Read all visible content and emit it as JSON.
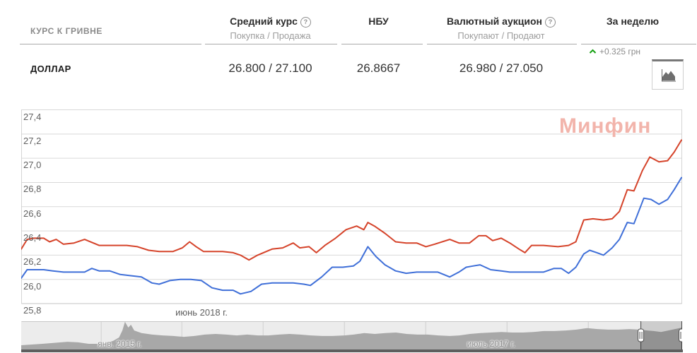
{
  "header": {
    "row_label": "КУРС К ГРИВНЕ",
    "avg": {
      "title": "Средний курс",
      "help": "?",
      "subtitle": "Покупка / Продажа"
    },
    "nbu": {
      "title": "НБУ"
    },
    "auction": {
      "title": "Валютный аукцион",
      "help": "?",
      "subtitle": "Покупают / Продают"
    },
    "week": {
      "title": "За неделю"
    }
  },
  "row": {
    "currency": "ДОЛЛАР",
    "avg_value": "26.800 / 27.100",
    "nbu_value": "26.8667",
    "auction_value": "26.980 / 27.050",
    "week_change": "+0.325 грн",
    "week_direction": "up"
  },
  "watermark": "Минфин",
  "colors": {
    "sell_line": "#d5432a",
    "buy_line": "#3f6fd8",
    "up_green": "#15a012",
    "watermark_pink": "#f2b4ab",
    "navigator_fill": "#a8a8a8"
  },
  "chart_data": {
    "type": "line",
    "title": "",
    "xlabel": "",
    "ylabel": "",
    "ylim": [
      25.8,
      27.4
    ],
    "grid": true,
    "legend": "none",
    "xtick_label": "июнь 2018 г.",
    "yticks": [
      {
        "label": "27,4",
        "value": 27.4
      },
      {
        "label": "27,2",
        "value": 27.2
      },
      {
        "label": "27,0",
        "value": 27.0
      },
      {
        "label": "26,8",
        "value": 26.8
      },
      {
        "label": "26,6",
        "value": 26.6
      },
      {
        "label": "26,4",
        "value": 26.4
      },
      {
        "label": "26,2",
        "value": 26.2
      },
      {
        "label": "26,0",
        "value": 26.0
      },
      {
        "label": "25,8",
        "value": 25.8
      }
    ],
    "series": [
      {
        "name": "продажа",
        "color": "#d5432a",
        "points": [
          [
            0,
            26.25
          ],
          [
            0.009,
            26.33
          ],
          [
            0.019,
            26.34
          ],
          [
            0.034,
            26.34
          ],
          [
            0.043,
            26.31
          ],
          [
            0.053,
            26.33
          ],
          [
            0.064,
            26.29
          ],
          [
            0.08,
            26.3
          ],
          [
            0.096,
            26.33
          ],
          [
            0.118,
            26.28
          ],
          [
            0.139,
            26.28
          ],
          [
            0.16,
            26.28
          ],
          [
            0.176,
            26.27
          ],
          [
            0.193,
            26.24
          ],
          [
            0.209,
            26.23
          ],
          [
            0.23,
            26.23
          ],
          [
            0.244,
            26.26
          ],
          [
            0.255,
            26.31
          ],
          [
            0.265,
            26.27
          ],
          [
            0.276,
            26.23
          ],
          [
            0.289,
            26.23
          ],
          [
            0.305,
            26.23
          ],
          [
            0.321,
            26.22
          ],
          [
            0.332,
            26.2
          ],
          [
            0.345,
            26.16
          ],
          [
            0.358,
            26.2
          ],
          [
            0.38,
            26.25
          ],
          [
            0.396,
            26.26
          ],
          [
            0.412,
            26.3
          ],
          [
            0.422,
            26.26
          ],
          [
            0.436,
            26.27
          ],
          [
            0.447,
            26.22
          ],
          [
            0.46,
            26.28
          ],
          [
            0.476,
            26.34
          ],
          [
            0.492,
            26.41
          ],
          [
            0.508,
            26.44
          ],
          [
            0.519,
            26.41
          ],
          [
            0.525,
            26.47
          ],
          [
            0.535,
            26.44
          ],
          [
            0.551,
            26.38
          ],
          [
            0.567,
            26.31
          ],
          [
            0.583,
            26.3
          ],
          [
            0.599,
            26.3
          ],
          [
            0.613,
            26.27
          ],
          [
            0.626,
            26.29
          ],
          [
            0.649,
            26.33
          ],
          [
            0.663,
            26.3
          ],
          [
            0.679,
            26.3
          ],
          [
            0.693,
            26.36
          ],
          [
            0.704,
            26.36
          ],
          [
            0.714,
            26.32
          ],
          [
            0.727,
            26.34
          ],
          [
            0.74,
            26.3
          ],
          [
            0.754,
            26.25
          ],
          [
            0.763,
            26.22
          ],
          [
            0.773,
            26.28
          ],
          [
            0.791,
            26.28
          ],
          [
            0.813,
            26.27
          ],
          [
            0.829,
            26.28
          ],
          [
            0.84,
            26.31
          ],
          [
            0.852,
            26.49
          ],
          [
            0.866,
            26.5
          ],
          [
            0.882,
            26.49
          ],
          [
            0.895,
            26.5
          ],
          [
            0.906,
            26.56
          ],
          [
            0.918,
            26.74
          ],
          [
            0.928,
            26.73
          ],
          [
            0.941,
            26.9
          ],
          [
            0.952,
            27.01
          ],
          [
            0.966,
            26.97
          ],
          [
            0.979,
            26.98
          ],
          [
            0.989,
            27.05
          ],
          [
            1,
            27.15
          ]
        ]
      },
      {
        "name": "покупка",
        "color": "#3f6fd8",
        "points": [
          [
            0,
            26.01
          ],
          [
            0.009,
            26.08
          ],
          [
            0.021,
            26.08
          ],
          [
            0.034,
            26.08
          ],
          [
            0.048,
            26.07
          ],
          [
            0.064,
            26.06
          ],
          [
            0.08,
            26.06
          ],
          [
            0.096,
            26.06
          ],
          [
            0.107,
            26.09
          ],
          [
            0.118,
            26.07
          ],
          [
            0.134,
            26.07
          ],
          [
            0.15,
            26.04
          ],
          [
            0.166,
            26.03
          ],
          [
            0.182,
            26.02
          ],
          [
            0.198,
            25.97
          ],
          [
            0.209,
            25.96
          ],
          [
            0.225,
            25.99
          ],
          [
            0.241,
            26.0
          ],
          [
            0.257,
            26.0
          ],
          [
            0.273,
            25.99
          ],
          [
            0.289,
            25.93
          ],
          [
            0.305,
            25.91
          ],
          [
            0.321,
            25.91
          ],
          [
            0.332,
            25.88
          ],
          [
            0.348,
            25.9
          ],
          [
            0.364,
            25.96
          ],
          [
            0.38,
            25.97
          ],
          [
            0.396,
            25.97
          ],
          [
            0.412,
            25.97
          ],
          [
            0.428,
            25.96
          ],
          [
            0.438,
            25.95
          ],
          [
            0.455,
            26.02
          ],
          [
            0.471,
            26.1
          ],
          [
            0.487,
            26.1
          ],
          [
            0.503,
            26.11
          ],
          [
            0.513,
            26.15
          ],
          [
            0.525,
            26.27
          ],
          [
            0.537,
            26.19
          ],
          [
            0.551,
            26.12
          ],
          [
            0.567,
            26.07
          ],
          [
            0.583,
            26.05
          ],
          [
            0.599,
            26.06
          ],
          [
            0.615,
            26.06
          ],
          [
            0.631,
            26.06
          ],
          [
            0.649,
            26.02
          ],
          [
            0.663,
            26.06
          ],
          [
            0.674,
            26.1
          ],
          [
            0.684,
            26.11
          ],
          [
            0.695,
            26.12
          ],
          [
            0.711,
            26.08
          ],
          [
            0.727,
            26.07
          ],
          [
            0.74,
            26.06
          ],
          [
            0.759,
            26.06
          ],
          [
            0.775,
            26.06
          ],
          [
            0.791,
            26.06
          ],
          [
            0.807,
            26.09
          ],
          [
            0.818,
            26.09
          ],
          [
            0.829,
            26.05
          ],
          [
            0.84,
            26.1
          ],
          [
            0.852,
            26.21
          ],
          [
            0.861,
            26.24
          ],
          [
            0.872,
            26.22
          ],
          [
            0.882,
            26.2
          ],
          [
            0.895,
            26.26
          ],
          [
            0.906,
            26.33
          ],
          [
            0.918,
            26.47
          ],
          [
            0.928,
            26.46
          ],
          [
            0.943,
            26.67
          ],
          [
            0.954,
            26.66
          ],
          [
            0.966,
            26.62
          ],
          [
            0.979,
            26.66
          ],
          [
            0.989,
            26.74
          ],
          [
            1,
            26.84
          ]
        ]
      }
    ],
    "navigator": {
      "range_labels": [
        {
          "label": "янв. 2015 г.",
          "pos": 0.149
        },
        {
          "label": "июль 2017 г.",
          "pos": 0.711
        }
      ],
      "ticks": [
        0.121,
        0.243,
        0.366,
        0.489,
        0.612,
        0.735,
        0.858
      ],
      "selection": [
        0.937,
        1.0
      ],
      "area_color": "#a8a8a8",
      "area": [
        [
          0,
          0.17
        ],
        [
          0.032,
          0.22
        ],
        [
          0.07,
          0.29
        ],
        [
          0.086,
          0.27
        ],
        [
          0.102,
          0.22
        ],
        [
          0.123,
          0.22
        ],
        [
          0.139,
          0.32
        ],
        [
          0.148,
          0.44
        ],
        [
          0.153,
          0.68
        ],
        [
          0.157,
          0.98
        ],
        [
          0.162,
          0.78
        ],
        [
          0.166,
          0.88
        ],
        [
          0.171,
          0.68
        ],
        [
          0.182,
          0.59
        ],
        [
          0.198,
          0.54
        ],
        [
          0.214,
          0.51
        ],
        [
          0.23,
          0.49
        ],
        [
          0.246,
          0.46
        ],
        [
          0.262,
          0.49
        ],
        [
          0.278,
          0.54
        ],
        [
          0.294,
          0.56
        ],
        [
          0.31,
          0.54
        ],
        [
          0.326,
          0.51
        ],
        [
          0.342,
          0.54
        ],
        [
          0.358,
          0.51
        ],
        [
          0.374,
          0.51
        ],
        [
          0.39,
          0.54
        ],
        [
          0.406,
          0.56
        ],
        [
          0.422,
          0.54
        ],
        [
          0.438,
          0.51
        ],
        [
          0.455,
          0.49
        ],
        [
          0.471,
          0.49
        ],
        [
          0.489,
          0.51
        ],
        [
          0.503,
          0.54
        ],
        [
          0.519,
          0.59
        ],
        [
          0.535,
          0.56
        ],
        [
          0.551,
          0.59
        ],
        [
          0.567,
          0.61
        ],
        [
          0.583,
          0.56
        ],
        [
          0.599,
          0.54
        ],
        [
          0.615,
          0.54
        ],
        [
          0.631,
          0.51
        ],
        [
          0.649,
          0.49
        ],
        [
          0.663,
          0.51
        ],
        [
          0.679,
          0.56
        ],
        [
          0.695,
          0.59
        ],
        [
          0.711,
          0.61
        ],
        [
          0.727,
          0.63
        ],
        [
          0.743,
          0.61
        ],
        [
          0.759,
          0.61
        ],
        [
          0.775,
          0.63
        ],
        [
          0.791,
          0.66
        ],
        [
          0.807,
          0.66
        ],
        [
          0.824,
          0.68
        ],
        [
          0.84,
          0.71
        ],
        [
          0.856,
          0.76
        ],
        [
          0.872,
          0.73
        ],
        [
          0.888,
          0.71
        ],
        [
          0.904,
          0.71
        ],
        [
          0.92,
          0.73
        ],
        [
          0.936,
          0.71
        ],
        [
          0.947,
          0.68
        ],
        [
          0.957,
          0.66
        ],
        [
          0.968,
          0.63
        ],
        [
          0.979,
          0.68
        ],
        [
          0.989,
          0.73
        ],
        [
          1,
          0.78
        ]
      ]
    }
  }
}
